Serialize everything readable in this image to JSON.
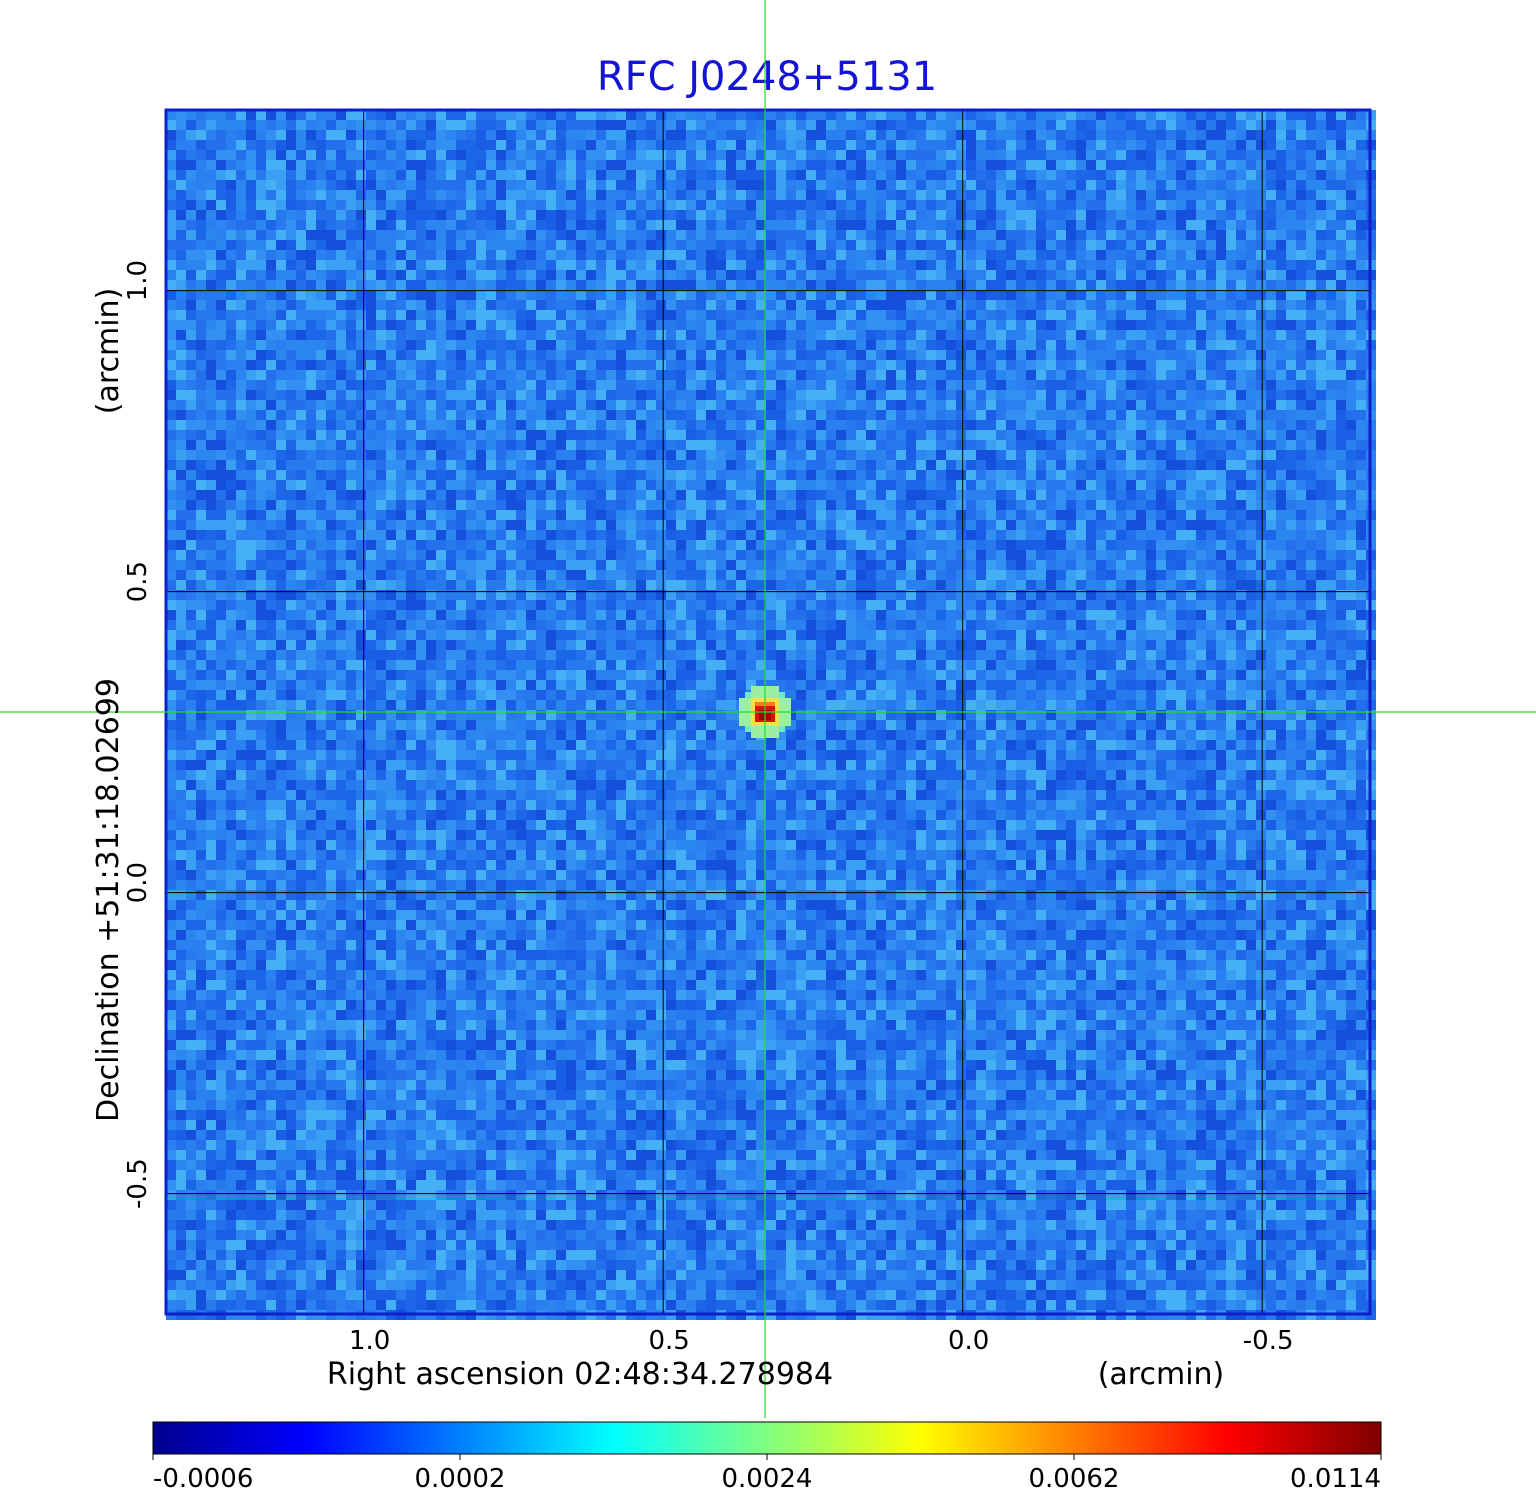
{
  "chart_data": {
    "type": "heatmap",
    "title": "RFC J0248+5131",
    "title_color": "#1414d6",
    "xlabel": "Right ascension  02:48:34.278984",
    "xunit": "(arcmin)",
    "ylabel": "Declination  +51:31:18.02699",
    "yunit": "(arcmin)",
    "x_ticks": [
      1.0,
      0.5,
      0.0,
      -0.5
    ],
    "x_tick_labels": [
      "1.0",
      "0.5",
      "0.0",
      "-0.5"
    ],
    "y_ticks": [
      1.0,
      0.5,
      0.0,
      -0.5
    ],
    "y_tick_labels": [
      "1.0",
      "0.5",
      "0.0",
      "-0.5"
    ],
    "xlim": [
      1.33,
      -0.68
    ],
    "ylim": [
      -0.7,
      1.3
    ],
    "grid": true,
    "crosshair": {
      "x": 0.33,
      "y": 0.3,
      "color": "#22dd22"
    },
    "source_peak": {
      "x": 0.33,
      "y": 0.3,
      "value": 0.0114
    },
    "colorbar": {
      "ticks": [
        "-0.0006",
        "0.0002",
        "0.0024",
        "0.0062",
        "0.0114"
      ],
      "colormap": "jet",
      "range": [
        -0.0006,
        0.0114
      ]
    },
    "frame_color": "#1020c8"
  }
}
